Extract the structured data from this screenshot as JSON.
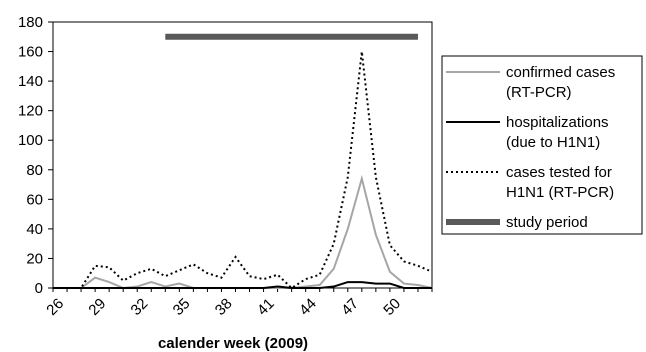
{
  "chart_data": {
    "type": "line",
    "title": "",
    "xlabel": "calender week (2009)",
    "ylabel": "",
    "x": [
      26,
      27,
      28,
      29,
      30,
      31,
      32,
      33,
      34,
      35,
      36,
      37,
      38,
      39,
      40,
      41,
      42,
      43,
      44,
      45,
      46,
      47,
      48,
      49,
      50,
      51,
      52,
      53
    ],
    "x_ticks": [
      "26",
      "29",
      "32",
      "35",
      "38",
      "41",
      "44",
      "47",
      "50"
    ],
    "xlim": [
      26,
      53
    ],
    "ylim": [
      0,
      180
    ],
    "y_ticks": [
      "0",
      "20",
      "40",
      "60",
      "80",
      "100",
      "120",
      "140",
      "160",
      "180"
    ],
    "grid": false,
    "legend_position": "right",
    "series": [
      {
        "name_lines": [
          "confirmed cases",
          "(RT-PCR)"
        ],
        "style": "solid",
        "color": "#a6a6a6",
        "values": [
          0,
          0,
          0,
          7,
          4,
          0,
          1,
          4,
          1,
          3,
          0,
          0,
          0,
          0,
          0,
          0,
          0,
          0,
          1,
          2,
          13,
          40,
          74,
          36,
          11,
          3,
          2,
          0
        ]
      },
      {
        "name_lines": [
          "hospitalizations",
          "(due to H1N1)"
        ],
        "style": "solid",
        "color": "#000000",
        "values": [
          0,
          0,
          0,
          0,
          0,
          0,
          0,
          0,
          0,
          0,
          0,
          0,
          0,
          0,
          0,
          0,
          1,
          0,
          0,
          0,
          1,
          4,
          4,
          3,
          3,
          0,
          0,
          0
        ]
      },
      {
        "name_lines": [
          "cases tested for",
          "H1N1 (RT-PCR)"
        ],
        "style": "dotted",
        "color": "#000000",
        "values": [
          0,
          0,
          0,
          15,
          14,
          5,
          10,
          13,
          8,
          12,
          16,
          10,
          7,
          21,
          8,
          6,
          9,
          0,
          6,
          9,
          30,
          75,
          160,
          75,
          29,
          18,
          15,
          11
        ]
      },
      {
        "name_lines": [
          "study period"
        ],
        "style": "thick",
        "color": "#595959",
        "range": [
          34,
          52
        ],
        "level": 170
      }
    ]
  }
}
